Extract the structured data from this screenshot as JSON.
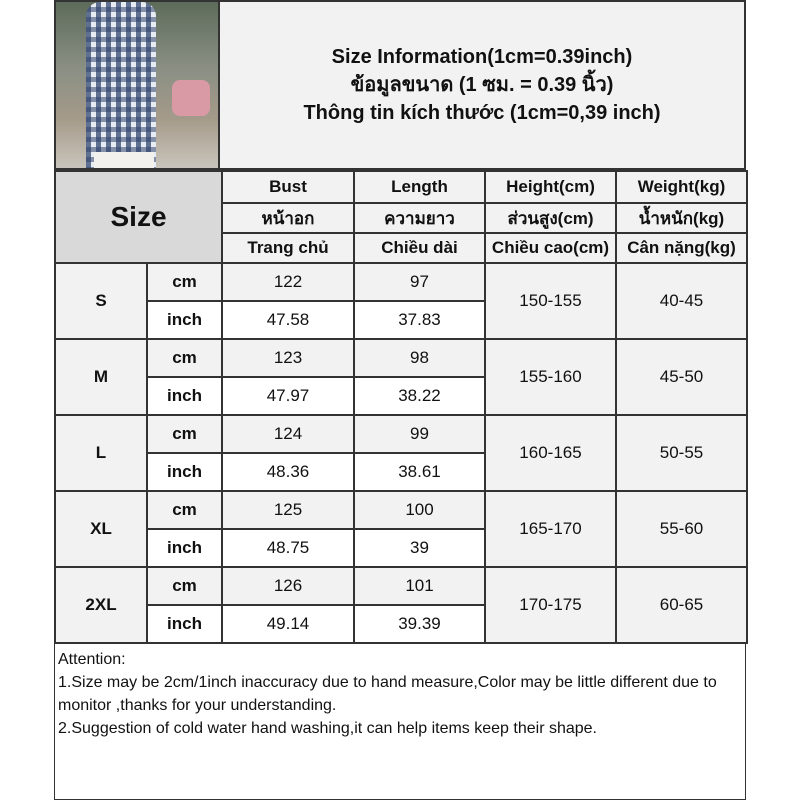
{
  "title": {
    "line1": "Size Information(1cm=0.39inch)",
    "line2": "ข้อมูลขนาด (1 ซม. = 0.39 นิ้ว)",
    "line3": "Thông tin kích thước (1cm=0,39 inch)"
  },
  "table": {
    "size_header": "Size",
    "columns": [
      {
        "en": "Bust",
        "th": "หน้าอก",
        "vi": "Trang chủ"
      },
      {
        "en": "Length",
        "th": "ความยาว",
        "vi": "Chiều dài"
      },
      {
        "en": "Height(cm)",
        "th": "ส่วนสูง(cm)",
        "vi": "Chiều cao(cm)"
      },
      {
        "en": "Weight(kg)",
        "th": "น้ำหนัก(kg)",
        "vi": "Cân nặng(kg)"
      }
    ],
    "units": {
      "cm": "cm",
      "inch": "inch"
    },
    "rows": [
      {
        "size": "S",
        "bust_cm": "122",
        "length_cm": "97",
        "bust_inch": "47.58",
        "length_inch": "37.83",
        "height": "150-155",
        "weight": "40-45"
      },
      {
        "size": "M",
        "bust_cm": "123",
        "length_cm": "98",
        "bust_inch": "47.97",
        "length_inch": "38.22",
        "height": "155-160",
        "weight": "45-50"
      },
      {
        "size": "L",
        "bust_cm": "124",
        "length_cm": "99",
        "bust_inch": "48.36",
        "length_inch": "38.61",
        "height": "160-165",
        "weight": "50-55"
      },
      {
        "size": "XL",
        "bust_cm": "125",
        "length_cm": "100",
        "bust_inch": "48.75",
        "length_inch": "39",
        "height": "165-170",
        "weight": "55-60"
      },
      {
        "size": "2XL",
        "bust_cm": "126",
        "length_cm": "101",
        "bust_inch": "49.14",
        "length_inch": "39.39",
        "height": "170-175",
        "weight": "60-65"
      }
    ]
  },
  "attention": {
    "heading": "Attention:",
    "note1": "1.Size may be 2cm/1inch inaccuracy due to hand measure,Color may be little different due to monitor ,thanks for your understanding.",
    "note2": "2.Suggestion of cold water hand washing,it can help items keep their shape."
  }
}
